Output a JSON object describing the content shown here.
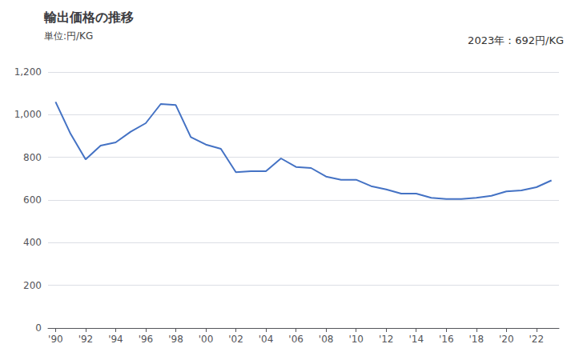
{
  "chart_data": {
    "type": "line",
    "title": "輸出価格の推移",
    "ylabel": "単位:円/KG",
    "annotations": [
      "2023年：692円/KG"
    ],
    "x": [
      1990,
      1991,
      1992,
      1993,
      1994,
      1995,
      1996,
      1997,
      1998,
      1999,
      2000,
      2001,
      2002,
      2003,
      2004,
      2005,
      2006,
      2007,
      2008,
      2009,
      2010,
      2011,
      2012,
      2013,
      2014,
      2015,
      2016,
      2017,
      2018,
      2019,
      2020,
      2021,
      2022,
      2023
    ],
    "values": [
      1060,
      910,
      790,
      855,
      870,
      920,
      960,
      1050,
      1045,
      895,
      860,
      840,
      730,
      735,
      735,
      795,
      755,
      750,
      710,
      695,
      695,
      665,
      650,
      630,
      630,
      610,
      605,
      605,
      610,
      620,
      640,
      645,
      660,
      692
    ],
    "color": "#4472C4",
    "xlim": [
      1989.5,
      2023.5
    ],
    "xticks": [
      {
        "value": 1990,
        "label": "'90"
      },
      {
        "value": 1992,
        "label": "'92"
      },
      {
        "value": 1994,
        "label": "'94"
      },
      {
        "value": 1996,
        "label": "'96"
      },
      {
        "value": 1998,
        "label": "'98"
      },
      {
        "value": 2000,
        "label": "'00"
      },
      {
        "value": 2002,
        "label": "'02"
      },
      {
        "value": 2004,
        "label": "'04"
      },
      {
        "value": 2006,
        "label": "'06"
      },
      {
        "value": 2008,
        "label": "'08"
      },
      {
        "value": 2010,
        "label": "'10"
      },
      {
        "value": 2012,
        "label": "'12"
      },
      {
        "value": 2014,
        "label": "'14"
      },
      {
        "value": 2016,
        "label": "'16"
      },
      {
        "value": 2018,
        "label": "'18"
      },
      {
        "value": 2020,
        "label": "'20"
      },
      {
        "value": 2022,
        "label": "'22"
      }
    ],
    "ylim": [
      0,
      1200
    ],
    "yticks": [
      0,
      200,
      400,
      600,
      800,
      {
        "value": 1000,
        "label": "1,000"
      },
      {
        "value": 1200,
        "label": "1,200"
      }
    ],
    "grid": true
  }
}
